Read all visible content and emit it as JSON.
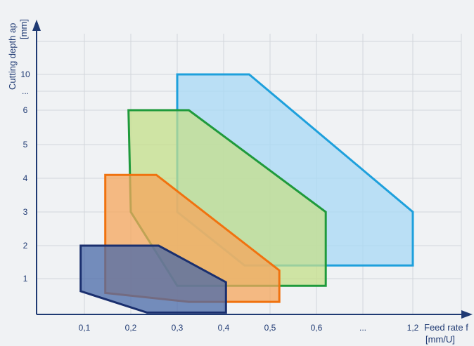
{
  "chart_data": {
    "type": "area",
    "ylabel_line1": "Cutting depth ap",
    "ylabel_line2": "[mm]",
    "xlabel_line1": "Feed rate f",
    "xlabel_line2": "[mm/U]",
    "x_ticks": [
      "0,1",
      "0,2",
      "0,3",
      "0,4",
      "0,5",
      "0,6",
      "...",
      "1,2"
    ],
    "y_ticks": [
      "1",
      "2",
      "3",
      "4",
      "5",
      "6",
      "...",
      "10"
    ],
    "grid": true,
    "series": [
      {
        "fill": "#a8d8f5",
        "stroke": "#1ea0dc",
        "points": [
          [
            0.3,
            10
          ],
          [
            0.455,
            10
          ],
          [
            1.2,
            3
          ],
          [
            1.2,
            1.4
          ],
          [
            0.445,
            1.4
          ],
          [
            0.3,
            3
          ]
        ]
      },
      {
        "fill": "#c4df8a",
        "stroke": "#1f9a3c",
        "points": [
          [
            0.195,
            6
          ],
          [
            0.325,
            6
          ],
          [
            0.62,
            3
          ],
          [
            0.62,
            0.8
          ],
          [
            0.3,
            0.8
          ],
          [
            0.2,
            3
          ]
        ]
      },
      {
        "fill": "#f5a55c",
        "stroke": "#f0720f",
        "points": [
          [
            0.145,
            4.1
          ],
          [
            0.255,
            4.1
          ],
          [
            0.52,
            1.25
          ],
          [
            0.52,
            0.35
          ],
          [
            0.325,
            0.35
          ],
          [
            0.145,
            0.6
          ]
        ]
      },
      {
        "fill": "#4a6aa8",
        "stroke": "#1a2f6e",
        "points": [
          [
            0.092,
            2
          ],
          [
            0.26,
            2
          ],
          [
            0.405,
            0.9
          ],
          [
            0.405,
            0.05
          ],
          [
            0.235,
            0.05
          ],
          [
            0.092,
            0.65
          ]
        ]
      }
    ]
  }
}
